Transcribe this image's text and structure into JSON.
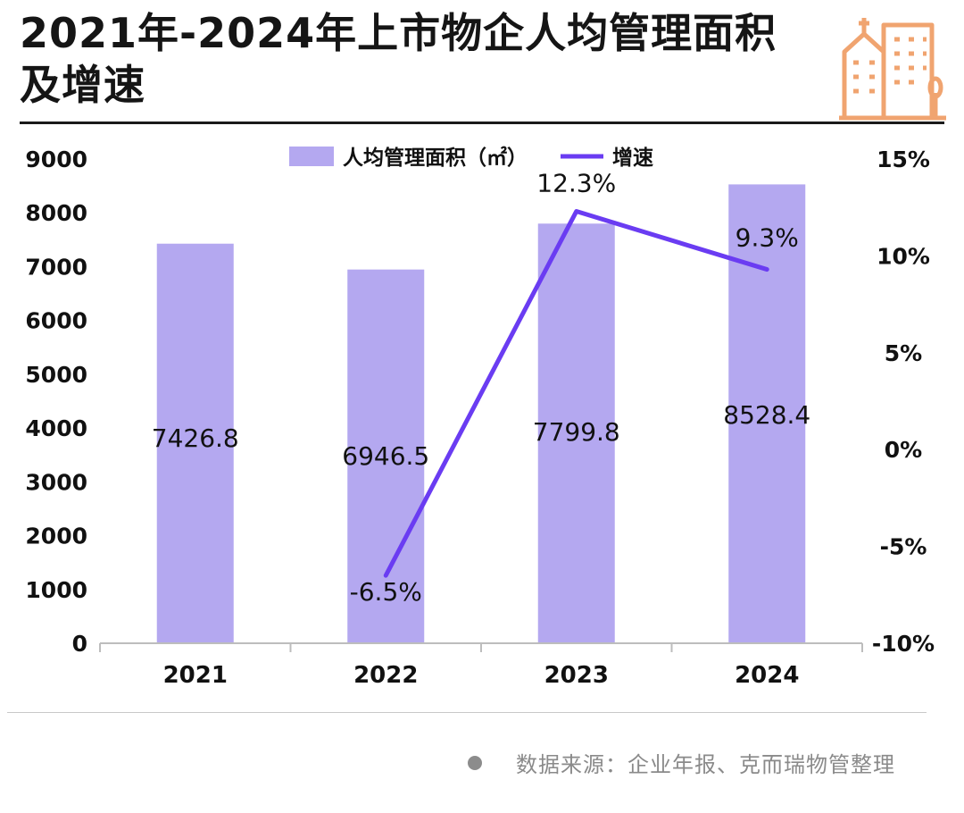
{
  "title": "2021年-2024年上市物企人均管理面积及增速",
  "source": "数据来源：企业年报、克而瑞物管整理",
  "colors": {
    "bar": "#b4a8f0",
    "line": "#6a3cf2",
    "axis": "#bdbdbd",
    "logo": "#f0a470"
  },
  "logo_icon": "city-buildings-icon",
  "chart_data": {
    "type": "bar+line",
    "categories": [
      "2021",
      "2022",
      "2023",
      "2024"
    ],
    "series": [
      {
        "name": "人均管理面积（㎡）",
        "type": "bar",
        "axis": "left",
        "values": [
          7426.8,
          6946.5,
          7799.8,
          8528.4
        ],
        "labels": [
          "7426.8",
          "6946.5",
          "7799.8",
          "8528.4"
        ]
      },
      {
        "name": "增速",
        "type": "line",
        "axis": "right",
        "values": [
          -6.5,
          12.3,
          9.3
        ],
        "x": [
          "2022",
          "2023",
          "2024"
        ],
        "labels": [
          "-6.5%",
          "12.3%",
          "9.3%"
        ]
      }
    ],
    "y_left": {
      "min": 0,
      "max": 9000,
      "ticks": [
        "0",
        "1000",
        "2000",
        "3000",
        "4000",
        "5000",
        "6000",
        "7000",
        "8000",
        "9000"
      ]
    },
    "y_right": {
      "min": -10,
      "max": 15,
      "ticks": [
        "-10%",
        "-5%",
        "0%",
        "5%",
        "10%",
        "15%"
      ]
    },
    "legend_position": "top-center",
    "grid": false
  }
}
